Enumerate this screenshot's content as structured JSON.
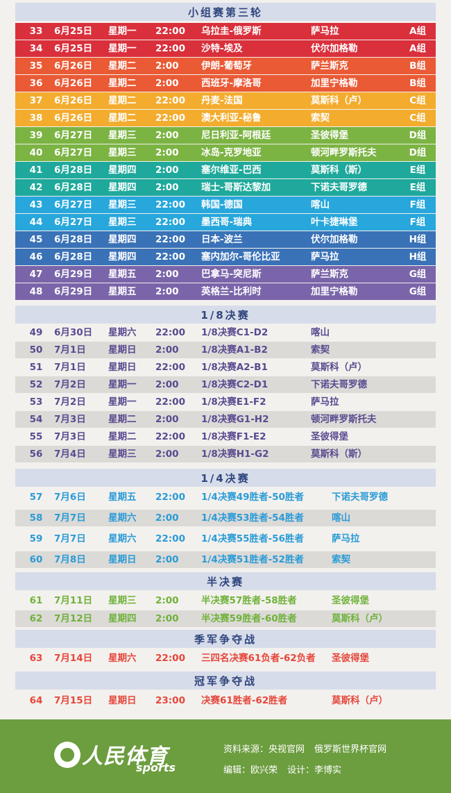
{
  "sections": {
    "group_round3": "小组赛第三轮",
    "round16": "1/8决赛",
    "quarter": "1/4决赛",
    "semi": "半决赛",
    "third": "季军争夺战",
    "final": "冠军争夺战"
  },
  "group_matches": [
    {
      "num": "33",
      "date": "6月25日",
      "weekday": "星期一",
      "time": "22:00",
      "match": "乌拉圭-俄罗斯",
      "venue": "萨马拉",
      "group": "A组",
      "color": "#d9303c"
    },
    {
      "num": "34",
      "date": "6月25日",
      "weekday": "星期一",
      "time": "22:00",
      "match": "沙特-埃及",
      "venue": "伏尔加格勒",
      "group": "A组",
      "color": "#d9303c"
    },
    {
      "num": "35",
      "date": "6月26日",
      "weekday": "星期二",
      "time": "2:00",
      "match": "伊朗-葡萄牙",
      "venue": "萨兰斯克",
      "group": "B组",
      "color": "#ea5a35"
    },
    {
      "num": "36",
      "date": "6月26日",
      "weekday": "星期二",
      "time": "2:00",
      "match": "西班牙-摩洛哥",
      "venue": "加里宁格勒",
      "group": "B组",
      "color": "#ea5a35"
    },
    {
      "num": "37",
      "date": "6月26日",
      "weekday": "星期二",
      "time": "22:00",
      "match": "丹麦-法国",
      "venue": "莫斯科（卢）",
      "group": "C组",
      "color": "#f3ac2e"
    },
    {
      "num": "38",
      "date": "6月26日",
      "weekday": "星期二",
      "time": "22:00",
      "match": "澳大利亚-秘鲁",
      "venue": "索契",
      "group": "C组",
      "color": "#f3ac2e"
    },
    {
      "num": "39",
      "date": "6月27日",
      "weekday": "星期三",
      "time": "2:00",
      "match": "尼日利亚-阿根廷",
      "venue": "圣彼得堡",
      "group": "D组",
      "color": "#7cb443"
    },
    {
      "num": "40",
      "date": "6月27日",
      "weekday": "星期三",
      "time": "2:00",
      "match": "冰岛-克罗地亚",
      "venue": "顿河畔罗斯托夫",
      "group": "D组",
      "color": "#7cb443"
    },
    {
      "num": "41",
      "date": "6月28日",
      "weekday": "星期四",
      "time": "2:00",
      "match": "塞尔维亚-巴西",
      "venue": "莫斯科（斯）",
      "group": "E组",
      "color": "#1fa99c"
    },
    {
      "num": "42",
      "date": "6月28日",
      "weekday": "星期四",
      "time": "2:00",
      "match": "瑞士-哥斯达黎加",
      "venue": "下诺夫哥罗德",
      "group": "E组",
      "color": "#1fa99c"
    },
    {
      "num": "43",
      "date": "6月27日",
      "weekday": "星期三",
      "time": "22:00",
      "match": "韩国-德国",
      "venue": "喀山",
      "group": "F组",
      "color": "#27a7db"
    },
    {
      "num": "44",
      "date": "6月27日",
      "weekday": "星期三",
      "time": "22:00",
      "match": "墨西哥-瑞典",
      "venue": "叶卡捷琳堡",
      "group": "F组",
      "color": "#27a7db"
    },
    {
      "num": "45",
      "date": "6月28日",
      "weekday": "星期四",
      "time": "22:00",
      "match": "日本-波兰",
      "venue": "伏尔加格勒",
      "group": "H组",
      "color": "#3a72b7"
    },
    {
      "num": "46",
      "date": "6月28日",
      "weekday": "星期四",
      "time": "22:00",
      "match": "塞内加尔-哥伦比亚",
      "venue": "萨马拉",
      "group": "H组",
      "color": "#3a72b7"
    },
    {
      "num": "47",
      "date": "6月29日",
      "weekday": "星期五",
      "time": "2:00",
      "match": "巴拿马-突尼斯",
      "venue": "萨兰斯克",
      "group": "G组",
      "color": "#7a65aa"
    },
    {
      "num": "48",
      "date": "6月29日",
      "weekday": "星期五",
      "time": "2:00",
      "match": "英格兰-比利时",
      "venue": "加里宁格勒",
      "group": "G组",
      "color": "#7a65aa"
    }
  ],
  "round16_matches": [
    {
      "num": "49",
      "date": "6月30日",
      "weekday": "星期六",
      "time": "22:00",
      "match": "1/8决赛C1-D2",
      "venue": "喀山"
    },
    {
      "num": "50",
      "date": "7月1日",
      "weekday": "星期日",
      "time": "2:00",
      "match": "1/8决赛A1-B2",
      "venue": "索契"
    },
    {
      "num": "51",
      "date": "7月1日",
      "weekday": "星期日",
      "time": "22:00",
      "match": "1/8决赛A2-B1",
      "venue": "莫斯科（卢）"
    },
    {
      "num": "52",
      "date": "7月2日",
      "weekday": "星期一",
      "time": "2:00",
      "match": "1/8决赛C2-D1",
      "venue": "下诺夫哥罗德"
    },
    {
      "num": "53",
      "date": "7月2日",
      "weekday": "星期一",
      "time": "22:00",
      "match": "1/8决赛E1-F2",
      "venue": "萨马拉"
    },
    {
      "num": "54",
      "date": "7月3日",
      "weekday": "星期二",
      "time": "2:00",
      "match": "1/8决赛G1-H2",
      "venue": "顿河畔罗斯托夫"
    },
    {
      "num": "55",
      "date": "7月3日",
      "weekday": "星期二",
      "time": "22:00",
      "match": "1/8决赛F1-E2",
      "venue": "圣彼得堡"
    },
    {
      "num": "56",
      "date": "7月4日",
      "weekday": "星期三",
      "time": "2:00",
      "match": "1/8决赛H1-G2",
      "venue": "莫斯科（斯）"
    }
  ],
  "quarter_matches": [
    {
      "num": "57",
      "date": "7月6日",
      "weekday": "星期五",
      "time": "22:00",
      "match": "1/4决赛49胜者-50胜者",
      "venue": "下诺夫哥罗德"
    },
    {
      "num": "58",
      "date": "7月7日",
      "weekday": "星期六",
      "time": "2:00",
      "match": "1/4决赛53胜者-54胜者",
      "venue": "喀山"
    },
    {
      "num": "59",
      "date": "7月7日",
      "weekday": "星期六",
      "time": "22:00",
      "match": "1/4决赛55胜者-56胜者",
      "venue": "萨马拉"
    },
    {
      "num": "60",
      "date": "7月8日",
      "weekday": "星期日",
      "time": "2:00",
      "match": "1/4决赛51胜者-52胜者",
      "venue": "索契"
    }
  ],
  "semi_matches": [
    {
      "num": "61",
      "date": "7月11日",
      "weekday": "星期三",
      "time": "2:00",
      "match": "半决赛57胜者-58胜者",
      "venue": "圣彼得堡"
    },
    {
      "num": "62",
      "date": "7月12日",
      "weekday": "星期四",
      "time": "2:00",
      "match": "半决赛59胜者-60胜者",
      "venue": "莫斯科（卢）"
    }
  ],
  "third_match": {
    "num": "63",
    "date": "7月14日",
    "weekday": "星期六",
    "time": "22:00",
    "match": "三四名决赛61负者-62负者",
    "venue": "圣彼得堡"
  },
  "final_match": {
    "num": "64",
    "date": "7月15日",
    "weekday": "星期日",
    "time": "23:00",
    "match": "决赛61胜者-62胜者",
    "venue": "莫斯科（卢）"
  },
  "colors": {
    "round16_text": "#5a4a8f",
    "quarter_text": "#2b9bd6",
    "semi_text": "#6fb23a",
    "third_text": "#e6463a",
    "final_text": "#e6463a",
    "footer_bg": "#6c9d3f"
  },
  "footer": {
    "logo_text": "人民体育",
    "logo_sub": "sports",
    "source_label": "资料来源：央视官网",
    "source_site": "俄罗斯世界杯官网",
    "editor": "编辑：欧兴荣",
    "designer": "设计：李博实"
  }
}
